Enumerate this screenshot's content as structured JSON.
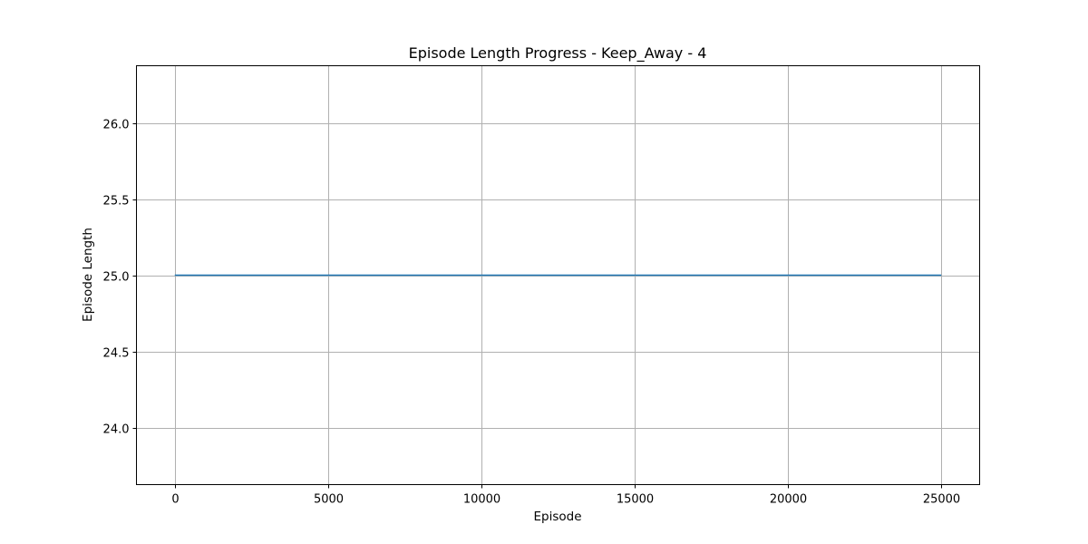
{
  "chart_data": {
    "type": "line",
    "title": "Episode Length Progress - Keep_Away - 4",
    "xlabel": "Episode",
    "ylabel": "Episode Length",
    "xlim": [
      -1250,
      26250
    ],
    "ylim": [
      23.625,
      26.375
    ],
    "xticks": [
      0,
      5000,
      10000,
      15000,
      20000,
      25000
    ],
    "yticks": [
      24.0,
      24.5,
      25.0,
      25.5,
      26.0
    ],
    "grid": true,
    "series": [
      {
        "color": "#1f77b4",
        "x": [
          0,
          25000
        ],
        "y": [
          25.0,
          25.0
        ]
      }
    ]
  }
}
